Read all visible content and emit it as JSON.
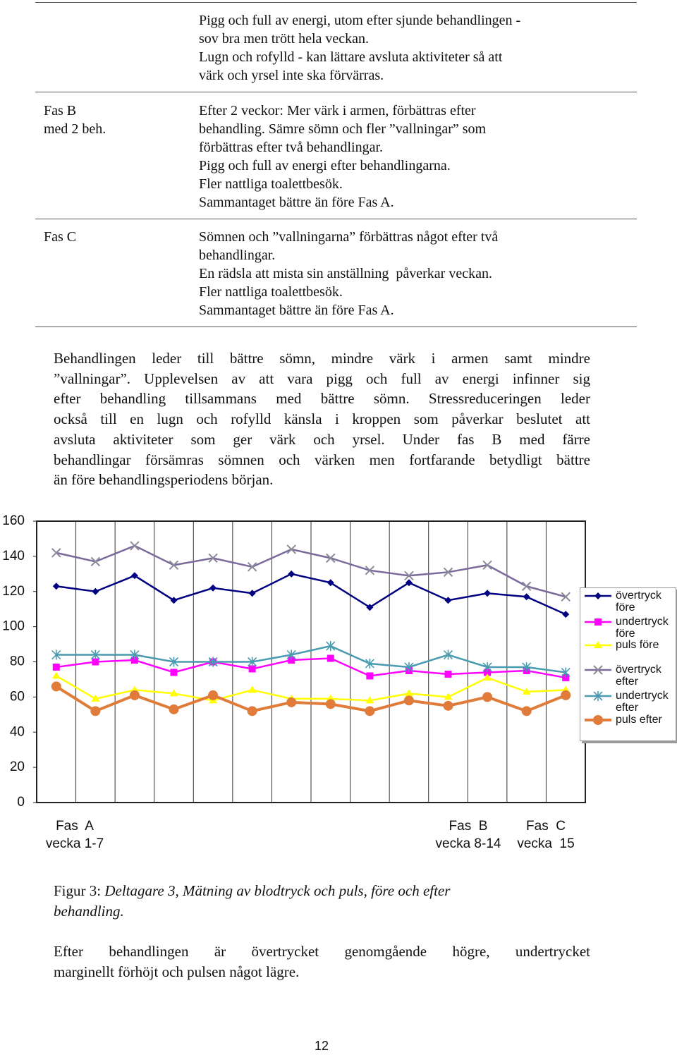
{
  "table": {
    "rows": [
      {
        "left": [],
        "right": [
          "Pigg och full av energi, utom efter sjunde behandlingen -",
          "sov bra men trött hela veckan.",
          "Lugn och rofylld - kan lättare avsluta aktiviteter så att",
          "värk och yrsel inte ska förvärras."
        ]
      },
      {
        "left": [
          "Fas B",
          "med 2 beh."
        ],
        "right": [
          "Efter 2 veckor: Mer värk i armen, förbättras efter",
          "behandling. Sämre sömn och fler ”vallningar” som",
          "förbättras efter två behandlingar.",
          "Pigg och full av energi efter behandlingarna.",
          "Fler nattliga toalettbesök.",
          "Sammantaget bättre än före Fas A."
        ]
      },
      {
        "left": [
          "Fas C"
        ],
        "right": [
          "Sömnen och ”vallningarna” förbättras något efter två",
          "behandlingar.",
          "En rädsla att mista sin anställning  påverkar veckan.",
          "Fler nattliga toalettbesök.",
          "Sammantaget bättre än före Fas A."
        ]
      }
    ]
  },
  "paragraph1": [
    "Behandlingen leder till bättre sömn, mindre värk i armen samt mindre",
    "”vallningar”. Upplevelsen av att vara pigg och full av energi infinner sig",
    "efter behandling tillsammans med bättre sömn. Stressreduceringen leder",
    "också till en lugn och rofylld känsla i kroppen som påverkar beslutet att",
    "avsluta aktiviteter som ger värk och yrsel. Under fas B med färre",
    "behandlingar försämras sömnen och värken men fortfarande betydligt bättre",
    "än före behandlingsperiodens början."
  ],
  "chart_data": {
    "type": "line",
    "categories": [
      null,
      null,
      null,
      null,
      null,
      null,
      null,
      null,
      null,
      null,
      null,
      null,
      null,
      null
    ],
    "x_annotations": [
      [
        "Fas  A",
        "vecka 1-7"
      ],
      [
        "Fas  B",
        "vecka 8-14"
      ],
      [
        "Fas  C",
        "vecka  15"
      ]
    ],
    "ylim": [
      0,
      160
    ],
    "yticks": [
      0,
      20,
      40,
      60,
      80,
      100,
      120,
      140,
      160
    ],
    "grid": "vertical",
    "legend": "right",
    "series": [
      {
        "name": "övertryck före",
        "color": "#000080",
        "marker": "diamond",
        "values": [
          123,
          120,
          129,
          115,
          122,
          119,
          130,
          125,
          111,
          125,
          115,
          119,
          117,
          107
        ]
      },
      {
        "name": "undertryck före",
        "color": "#ff00ff",
        "marker": "square",
        "values": [
          77,
          80,
          81,
          74,
          80,
          76,
          81,
          82,
          72,
          75,
          73,
          74,
          75,
          71
        ]
      },
      {
        "name": "puls före",
        "color": "#ffff00",
        "marker": "triangle",
        "values": [
          72,
          59,
          64,
          62,
          58,
          64,
          59,
          59,
          58,
          62,
          60,
          71,
          63,
          64
        ]
      },
      {
        "name": "övertryck efter",
        "color": "#7b6a9b",
        "marker": "x",
        "values": [
          142,
          137,
          146,
          135,
          139,
          134,
          144,
          139,
          132,
          129,
          131,
          135,
          123,
          117
        ]
      },
      {
        "name": "undertryck efter",
        "color": "#4a9bb0",
        "marker": "asterisk",
        "values": [
          84,
          84,
          84,
          80,
          80,
          80,
          84,
          89,
          79,
          77,
          84,
          77,
          77,
          74
        ]
      },
      {
        "name": "puls efter",
        "color": "#e07b39",
        "marker": "circle",
        "values": [
          66,
          52,
          61,
          53,
          61,
          52,
          57,
          56,
          52,
          58,
          55,
          60,
          52,
          61
        ]
      }
    ]
  },
  "caption": {
    "label": "Figur 3: ",
    "text": "Deltagare 3, Mätning av blodtryck och puls, före och efter",
    "text2": "behandling."
  },
  "paragraph2": [
    "Efter behandlingen är övertrycket genomgående högre, undertrycket",
    "marginellt förhöjt och pulsen något lägre."
  ],
  "page_number": "12"
}
